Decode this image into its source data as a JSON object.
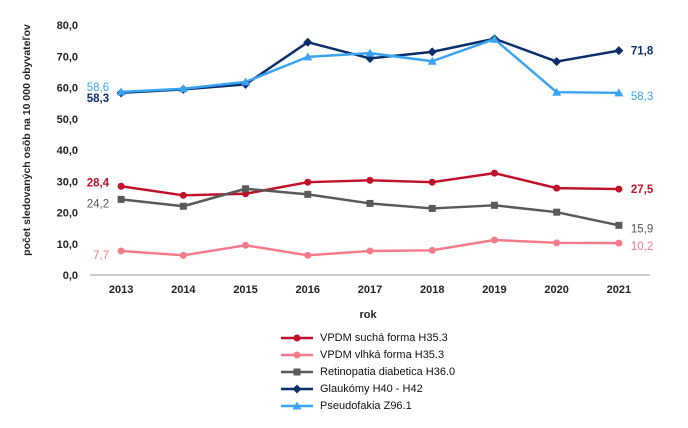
{
  "chart_data": {
    "type": "line",
    "xlabel": "rok",
    "ylabel": "počet sledovaných osôb na 10 000 obyvateľov",
    "ylim": [
      0,
      80
    ],
    "yticks": [
      "0,0",
      "10,0",
      "20,0",
      "30,0",
      "40,0",
      "50,0",
      "60,0",
      "70,0",
      "80,0"
    ],
    "categories": [
      "2013",
      "2014",
      "2015",
      "2016",
      "2017",
      "2018",
      "2019",
      "2020",
      "2021"
    ],
    "grid": false,
    "legend_position": "bottom",
    "series": [
      {
        "name": "VPDM suchá forma H35.3",
        "color": "#c0102a",
        "marker": "circle",
        "values": [
          28.4,
          25.5,
          26.0,
          29.7,
          30.3,
          29.7,
          32.6,
          27.8,
          27.5
        ],
        "labels": {
          "first": "28,4",
          "last": "27,5"
        }
      },
      {
        "name": "VPDM vlhká forma H35.3",
        "color": "#f47a8a",
        "marker": "circle",
        "values": [
          7.7,
          6.3,
          9.5,
          6.3,
          7.7,
          7.9,
          11.2,
          10.3,
          10.2
        ],
        "labels": {
          "first": "7,7",
          "last": "10,2"
        }
      },
      {
        "name": "Retinopatia diabetica H36.0",
        "color": "#595959",
        "marker": "square",
        "values": [
          24.2,
          22.0,
          27.6,
          25.8,
          22.9,
          21.3,
          22.3,
          20.1,
          15.9
        ],
        "labels": {
          "first": "24,2",
          "last": "15,9"
        }
      },
      {
        "name": "Glaukómy H40 - H42",
        "color": "#0b2e6b",
        "marker": "diamond",
        "values": [
          58.3,
          59.4,
          61.0,
          74.5,
          69.3,
          71.4,
          75.6,
          68.3,
          71.8
        ],
        "labels": {
          "first": "58,3",
          "last": "71,8"
        }
      },
      {
        "name": "Pseudofakia Z96.1",
        "color": "#3aa3f0",
        "marker": "triangle",
        "values": [
          58.6,
          59.6,
          61.8,
          69.8,
          71.0,
          68.4,
          75.5,
          58.5,
          58.3
        ],
        "labels": {
          "first": "58,6",
          "last": "58,3"
        }
      }
    ]
  }
}
